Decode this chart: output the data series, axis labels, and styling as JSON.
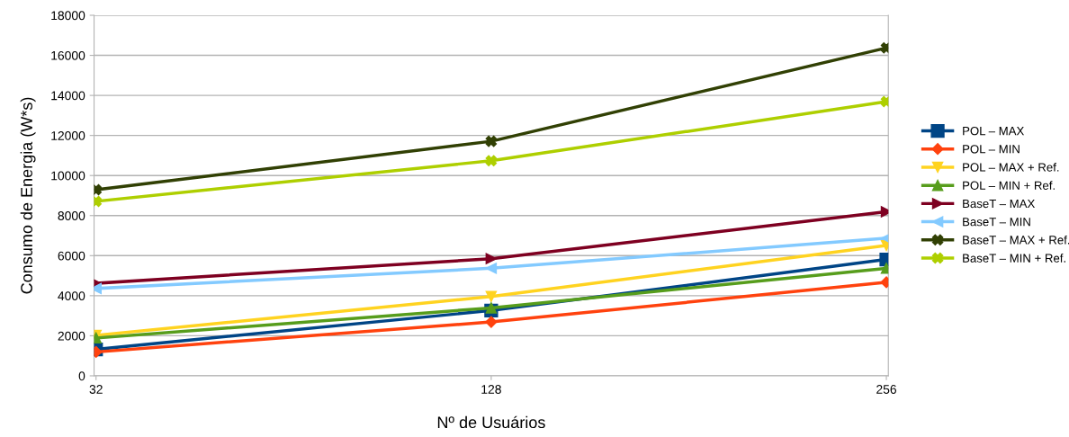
{
  "chart_data": {
    "type": "line",
    "xlabel": "Nº de Usuários",
    "ylabel": "Consumo de Energia (W*s)",
    "categories": [
      "32",
      "128",
      "256"
    ],
    "ylim": [
      0,
      18000
    ],
    "yticks": [
      0,
      2000,
      4000,
      6000,
      8000,
      10000,
      12000,
      14000,
      16000,
      18000
    ],
    "grid": "y",
    "legend": "right",
    "line_style": "solid",
    "series": [
      {
        "name": "POL – MAX",
        "color": "#004586",
        "marker": "square",
        "values": [
          1320,
          3260,
          5810
        ]
      },
      {
        "name": "POL – MIN",
        "color": "#ff420e",
        "marker": "diamond",
        "values": [
          1190,
          2690,
          4670
        ]
      },
      {
        "name": "POL – MAX + Ref.",
        "color": "#ffd320",
        "marker": "triangle_down",
        "values": [
          2020,
          3960,
          6510
        ]
      },
      {
        "name": "POL – MIN + Ref.",
        "color": "#579d1c",
        "marker": "triangle",
        "values": [
          1890,
          3390,
          5370
        ]
      },
      {
        "name": "BaseT – MAX",
        "color": "#7e0021",
        "marker": "triangle_right",
        "values": [
          4620,
          5850,
          8190
        ]
      },
      {
        "name": "BaseT – MIN",
        "color": "#83caff",
        "marker": "triangle_left",
        "values": [
          4360,
          5370,
          6870
        ]
      },
      {
        "name": "BaseT – MAX + Ref.",
        "color": "#314004",
        "marker": "cross",
        "values": [
          9290,
          11710,
          16370
        ]
      },
      {
        "name": "BaseT – MIN + Ref.",
        "color": "#aecf00",
        "marker": "cross",
        "values": [
          8710,
          10740,
          13690
        ]
      }
    ]
  }
}
